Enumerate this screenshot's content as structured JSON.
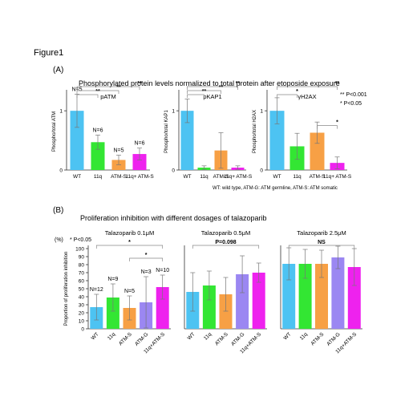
{
  "figure_title": "Figure1",
  "panel_a": {
    "label": "(A)",
    "title": "Phosphorylated protein levels normalized to total protein after etoposide exposure",
    "significance_legend": [
      "** P<0.001",
      "* P<0.05"
    ],
    "footnote": "WT: wild type, ATM-G: ATM germline, ATM-S: ATM somatic"
  },
  "panel_b": {
    "label": "(B)",
    "title": "Proliferation inhibition with different dosages of talazoparib",
    "significance_legend": "* P<0.05",
    "y_unit": "(%)"
  },
  "colors": {
    "WT": "#4dc3f2",
    "11q": "#33e633",
    "ATM-S": "#f7a045",
    "ATM-G": "#9b87f2",
    "11q+ ATM-S": "#ee22ee",
    "11q+ATM-S": "#ee22ee"
  },
  "chart_data": [
    {
      "type": "bar",
      "title": "pATM",
      "categories": [
        "WT",
        "11q",
        "ATM-S",
        "11q+ ATM-S"
      ],
      "values": [
        1.0,
        0.47,
        0.17,
        0.27
      ],
      "errors": [
        0.28,
        0.12,
        0.08,
        0.1
      ],
      "ylabel": "Phospho/total ATM",
      "ylim": [
        0,
        1.3
      ],
      "yticks": [
        0,
        1
      ],
      "n_labels": [
        "N=5",
        "N=6",
        "N=5",
        "N=6"
      ],
      "significance": [
        {
          "from": "WT",
          "to": "11q",
          "label": "**"
        },
        {
          "from": "WT",
          "to": "ATM-S",
          "label": "**"
        },
        {
          "from": "WT",
          "to": "11q+ ATM-S",
          "label": "**"
        }
      ]
    },
    {
      "type": "bar",
      "title": "pKAP1",
      "categories": [
        "WT",
        "11q",
        "ATM-S",
        "11q+ ATM-S"
      ],
      "values": [
        1.0,
        0.04,
        0.33,
        0.04
      ],
      "errors": [
        0.2,
        0.03,
        0.3,
        0.03
      ],
      "ylabel": "Phospho/total KAP1",
      "ylim": [
        0,
        1.3
      ],
      "yticks": [
        0,
        1
      ],
      "significance": [
        {
          "from": "WT",
          "to": "11q",
          "label": "**"
        },
        {
          "from": "WT",
          "to": "ATM-S",
          "label": "**"
        },
        {
          "from": "WT",
          "to": "11q+ ATM-S",
          "label": "**"
        }
      ]
    },
    {
      "type": "bar",
      "title": "γH2AX",
      "categories": [
        "WT",
        "11q",
        "ATM-S",
        "11q+ ATM-S"
      ],
      "values": [
        1.0,
        0.4,
        0.63,
        0.12
      ],
      "errors": [
        0.22,
        0.22,
        0.18,
        0.1
      ],
      "ylabel": "Phospho/total H2AX",
      "ylim": [
        0,
        1.3
      ],
      "yticks": [
        0,
        1
      ],
      "significance": [
        {
          "from": "WT",
          "to": "11q",
          "label": "*"
        },
        {
          "from": "ATM-S",
          "to": "11q+ ATM-S",
          "label": "*"
        },
        {
          "from": "WT",
          "to": "11q+ ATM-S",
          "label": "**"
        }
      ]
    },
    {
      "type": "bar",
      "title": "Talazoparib 0.1μM",
      "categories": [
        "WT",
        "11q",
        "ATM-S",
        "ATM-G",
        "11q+ATM-S"
      ],
      "values": [
        27,
        39,
        26,
        33,
        52
      ],
      "errors": [
        16,
        17,
        15,
        32,
        15
      ],
      "ylabel": "Proportion of proliferation inhibition",
      "ylim": [
        0,
        100
      ],
      "yticks": [
        0,
        10,
        20,
        30,
        40,
        50,
        60,
        70,
        80,
        90,
        100
      ],
      "n_labels": [
        "N=12",
        "N=9",
        "N=5",
        "N=3",
        "N=10"
      ],
      "significance": [
        {
          "from": "WT",
          "to": "11q+ATM-S",
          "label": "*"
        },
        {
          "from": "ATM-S",
          "to": "11q+ATM-S",
          "label": "*"
        }
      ]
    },
    {
      "type": "bar",
      "title": "Talazoparib 0.5μM",
      "categories": [
        "WT",
        "11q",
        "ATM-S",
        "ATM-G",
        "11q+ATM-S"
      ],
      "values": [
        46,
        54,
        43,
        68,
        70
      ],
      "errors": [
        24,
        18,
        21,
        23,
        12
      ],
      "ylim": [
        0,
        100
      ],
      "significance": [
        {
          "from": "WT",
          "to": "11q+ATM-S",
          "label": "P=0.098"
        }
      ]
    },
    {
      "type": "bar",
      "title": "Talazoparib 2.5μM",
      "categories": [
        "WT",
        "11q",
        "ATM-S",
        "ATM-G",
        "11q+ATM-S"
      ],
      "values": [
        81,
        81,
        81,
        89,
        77
      ],
      "errors": [
        20,
        18,
        17,
        14,
        23
      ],
      "ylim": [
        0,
        100
      ],
      "significance": [
        {
          "from": "WT",
          "to": "11q+ATM-S",
          "label": "NS"
        }
      ]
    }
  ]
}
